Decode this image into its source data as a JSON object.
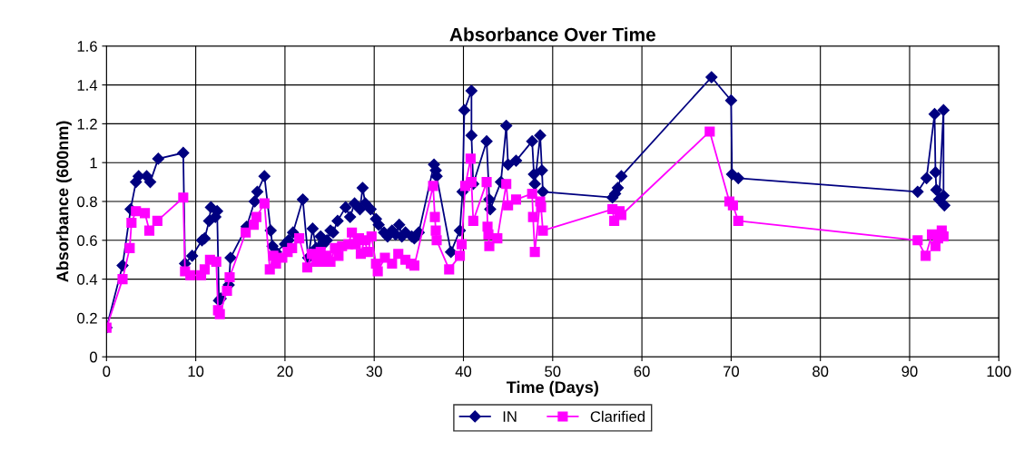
{
  "chart_data": {
    "type": "line",
    "title": "Absorbance Over Time",
    "xlabel": "Time (Days)",
    "ylabel": "Absorbance (600nm)",
    "xlim": [
      0,
      100
    ],
    "xticks": [
      0,
      10,
      20,
      30,
      40,
      50,
      60,
      70,
      80,
      90,
      100
    ],
    "ylim": [
      0,
      1.6
    ],
    "yticks": [
      0,
      0.2,
      0.4,
      0.6,
      0.8,
      1,
      1.2,
      1.4,
      1.6
    ],
    "grid": true,
    "legend": "bottom",
    "series": [
      {
        "name": "IN",
        "color": "#000080",
        "marker": "diamond",
        "x": [
          0,
          1.8,
          2.7,
          3.3,
          3.6,
          4.5,
          4.9,
          5.8,
          8.6,
          8.8,
          9.6,
          10.7,
          11,
          11.5,
          11.7,
          12.2,
          12.4,
          12.6,
          12.8,
          13.7,
          13.9,
          15.7,
          16.6,
          16.9,
          17.7,
          18.4,
          18.6,
          19,
          20,
          20.4,
          20.9,
          22,
          22.6,
          23.1,
          23.5,
          24,
          24.3,
          24.7,
          25.1,
          25.4,
          25.9,
          26.8,
          27.3,
          27.8,
          28.4,
          28.7,
          29,
          29.6,
          30.2,
          30.5,
          31.1,
          31.5,
          32,
          32.4,
          32.8,
          33.1,
          33.5,
          34.2,
          34.5,
          35,
          36.7,
          36.9,
          37,
          38.6,
          39.6,
          39.9,
          40.1,
          40.9,
          40.9,
          41.1,
          42.6,
          42.9,
          43,
          44.2,
          44.8,
          45,
          45.9,
          47.7,
          47.9,
          48,
          48.6,
          48.8,
          48.9,
          56.7,
          57,
          57.3,
          57.7,
          67.8,
          70,
          70.1,
          70.8,
          90.9,
          91.9,
          92.8,
          92.9,
          93,
          93.3,
          93.8,
          93.8,
          93.9
        ],
        "values": [
          0.15,
          0.47,
          0.76,
          0.9,
          0.93,
          0.93,
          0.9,
          1.02,
          1.05,
          0.48,
          0.52,
          0.6,
          0.61,
          0.7,
          0.77,
          0.72,
          0.75,
          0.29,
          0.3,
          0.37,
          0.51,
          0.67,
          0.8,
          0.85,
          0.93,
          0.65,
          0.57,
          0.54,
          0.58,
          0.6,
          0.64,
          0.81,
          0.51,
          0.66,
          0.56,
          0.62,
          0.58,
          0.6,
          0.65,
          0.64,
          0.7,
          0.77,
          0.72,
          0.79,
          0.76,
          0.87,
          0.79,
          0.76,
          0.71,
          0.68,
          0.64,
          0.62,
          0.65,
          0.63,
          0.68,
          0.62,
          0.64,
          0.62,
          0.61,
          0.64,
          0.99,
          0.96,
          0.93,
          0.54,
          0.65,
          0.85,
          1.27,
          1.37,
          1.14,
          0.89,
          1.11,
          0.81,
          0.76,
          0.9,
          1.19,
          0.99,
          1.01,
          1.11,
          0.94,
          0.89,
          1.14,
          0.96,
          0.85,
          0.82,
          0.84,
          0.87,
          0.93,
          1.44,
          1.32,
          0.94,
          0.92,
          0.85,
          0.92,
          1.25,
          0.95,
          0.86,
          0.81,
          1.27,
          0.83,
          0.78
        ]
      },
      {
        "name": "Clarified",
        "color": "#ff00ff",
        "marker": "square",
        "x": [
          0,
          1.8,
          2.6,
          2.8,
          3.3,
          4.3,
          4.8,
          5.7,
          8.6,
          8.8,
          9.4,
          10.6,
          11,
          11.6,
          12.3,
          12.5,
          12.7,
          13.5,
          13.8,
          15.6,
          16.5,
          16.8,
          17.7,
          18.3,
          18.7,
          19,
          19.7,
          20.3,
          20.8,
          21.6,
          22.5,
          23,
          23.5,
          24,
          24.3,
          24.7,
          25.1,
          25.6,
          26,
          26.4,
          27.1,
          27.5,
          27.9,
          28.3,
          28.5,
          28.9,
          29.3,
          29.7,
          30.2,
          30.4,
          31.2,
          32,
          32.7,
          33.5,
          34.1,
          34.5,
          36.6,
          36.8,
          36.9,
          37,
          38.4,
          39.6,
          39.8,
          40.2,
          40.8,
          40.9,
          41.1,
          42.6,
          42.7,
          42.8,
          42.9,
          43.8,
          44.8,
          45,
          45.9,
          47.7,
          47.8,
          48,
          48.6,
          48.7,
          48.9,
          56.7,
          56.9,
          57.5,
          57.7,
          67.6,
          69.8,
          70.2,
          70.8,
          90.9,
          91.8,
          92.5,
          92.9,
          93.2,
          93.6,
          93.8
        ],
        "values": [
          0.15,
          0.4,
          0.56,
          0.69,
          0.75,
          0.74,
          0.65,
          0.7,
          0.82,
          0.44,
          0.42,
          0.42,
          0.45,
          0.5,
          0.49,
          0.24,
          0.22,
          0.34,
          0.41,
          0.64,
          0.68,
          0.72,
          0.79,
          0.45,
          0.52,
          0.48,
          0.51,
          0.54,
          0.56,
          0.61,
          0.46,
          0.53,
          0.49,
          0.54,
          0.49,
          0.52,
          0.49,
          0.56,
          0.52,
          0.57,
          0.58,
          0.64,
          0.58,
          0.61,
          0.53,
          0.6,
          0.54,
          0.62,
          0.48,
          0.44,
          0.51,
          0.48,
          0.53,
          0.5,
          0.48,
          0.47,
          0.88,
          0.72,
          0.65,
          0.6,
          0.45,
          0.52,
          0.58,
          0.88,
          1.02,
          0.9,
          0.7,
          0.9,
          0.67,
          0.63,
          0.57,
          0.61,
          0.89,
          0.78,
          0.81,
          0.84,
          0.72,
          0.54,
          0.8,
          0.77,
          0.65,
          0.76,
          0.7,
          0.75,
          0.73,
          1.16,
          0.8,
          0.78,
          0.7,
          0.6,
          0.52,
          0.63,
          0.57,
          0.61,
          0.65,
          0.62
        ]
      }
    ]
  }
}
